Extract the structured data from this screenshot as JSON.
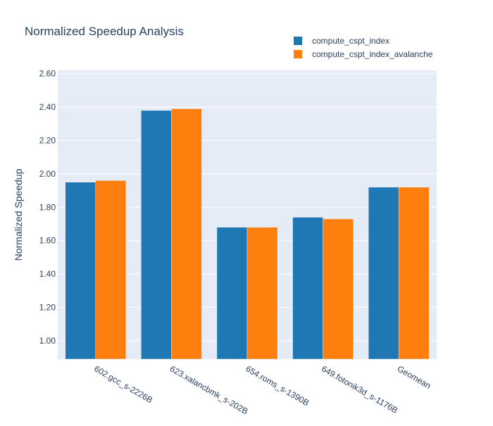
{
  "chart_data": {
    "type": "bar",
    "title": "Normalized Speedup Analysis",
    "xlabel": "",
    "ylabel": "Normalized Speedup",
    "ylim": [
      0.89,
      2.62
    ],
    "yticks": [
      "1.00",
      "1.20",
      "1.40",
      "1.60",
      "1.80",
      "2.00",
      "2.20",
      "2.40",
      "2.60"
    ],
    "categories": [
      "602.gcc_s-2226B",
      "623.xalancbmk_s-202B",
      "654.roms_s-1390B",
      "649.fotonik3d_s-1176B",
      "Geomean"
    ],
    "series": [
      {
        "name": "compute_cspt_index",
        "color": "#1f77b4",
        "values": [
          1.95,
          2.38,
          1.68,
          1.74,
          1.92
        ]
      },
      {
        "name": "compute_cspt_index_avalanche",
        "color": "#ff7f0e",
        "values": [
          1.96,
          2.39,
          1.68,
          1.73,
          1.92
        ]
      }
    ],
    "grid": true,
    "legend_position": "top-right"
  }
}
